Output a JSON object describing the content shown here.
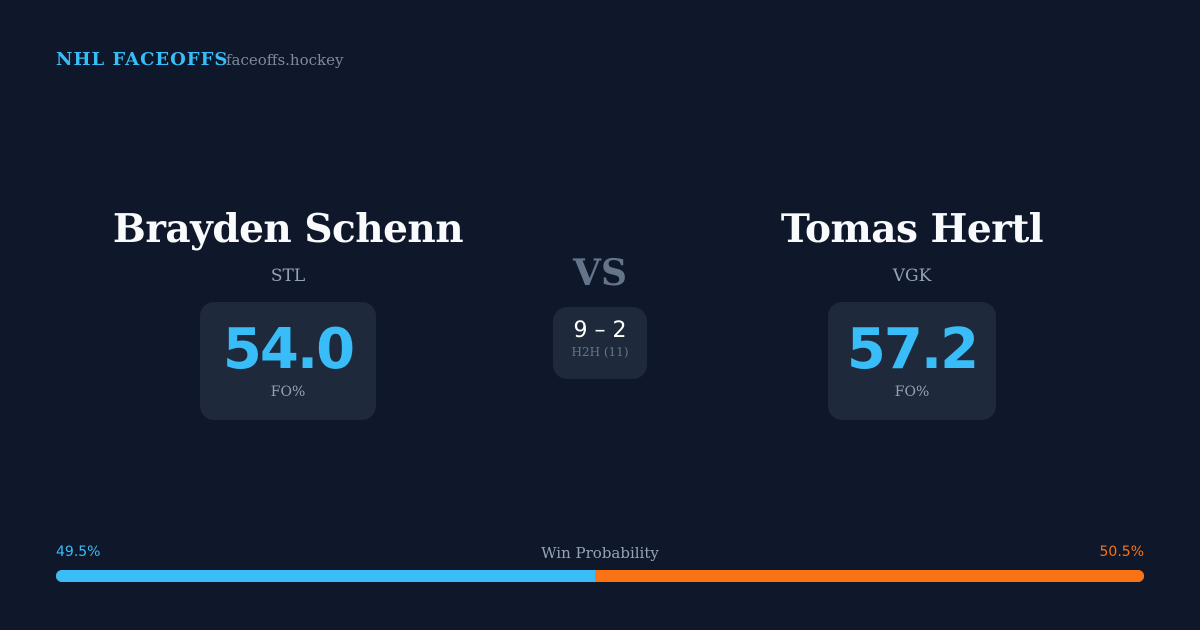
{
  "header": {
    "brand": "NHL FACEOFFS",
    "site": "faceoffs.hockey"
  },
  "left": {
    "name": "Brayden Schenn",
    "team": "STL",
    "fo_pct": "54.0",
    "fo_label": "FO%"
  },
  "right": {
    "name": "Tomas Hertl",
    "team": "VGK",
    "fo_pct": "57.2",
    "fo_label": "FO%"
  },
  "vs": "VS",
  "h2h": {
    "score": "9 – 2",
    "label": "H2H (11)"
  },
  "win_probability": {
    "label": "Win Probability",
    "left": "49.5%",
    "right": "50.5%",
    "left_value": 49.5,
    "right_value": 50.5
  },
  "colors": {
    "left": "#38bdf8",
    "right": "#f97316",
    "background": "#0f172a"
  }
}
